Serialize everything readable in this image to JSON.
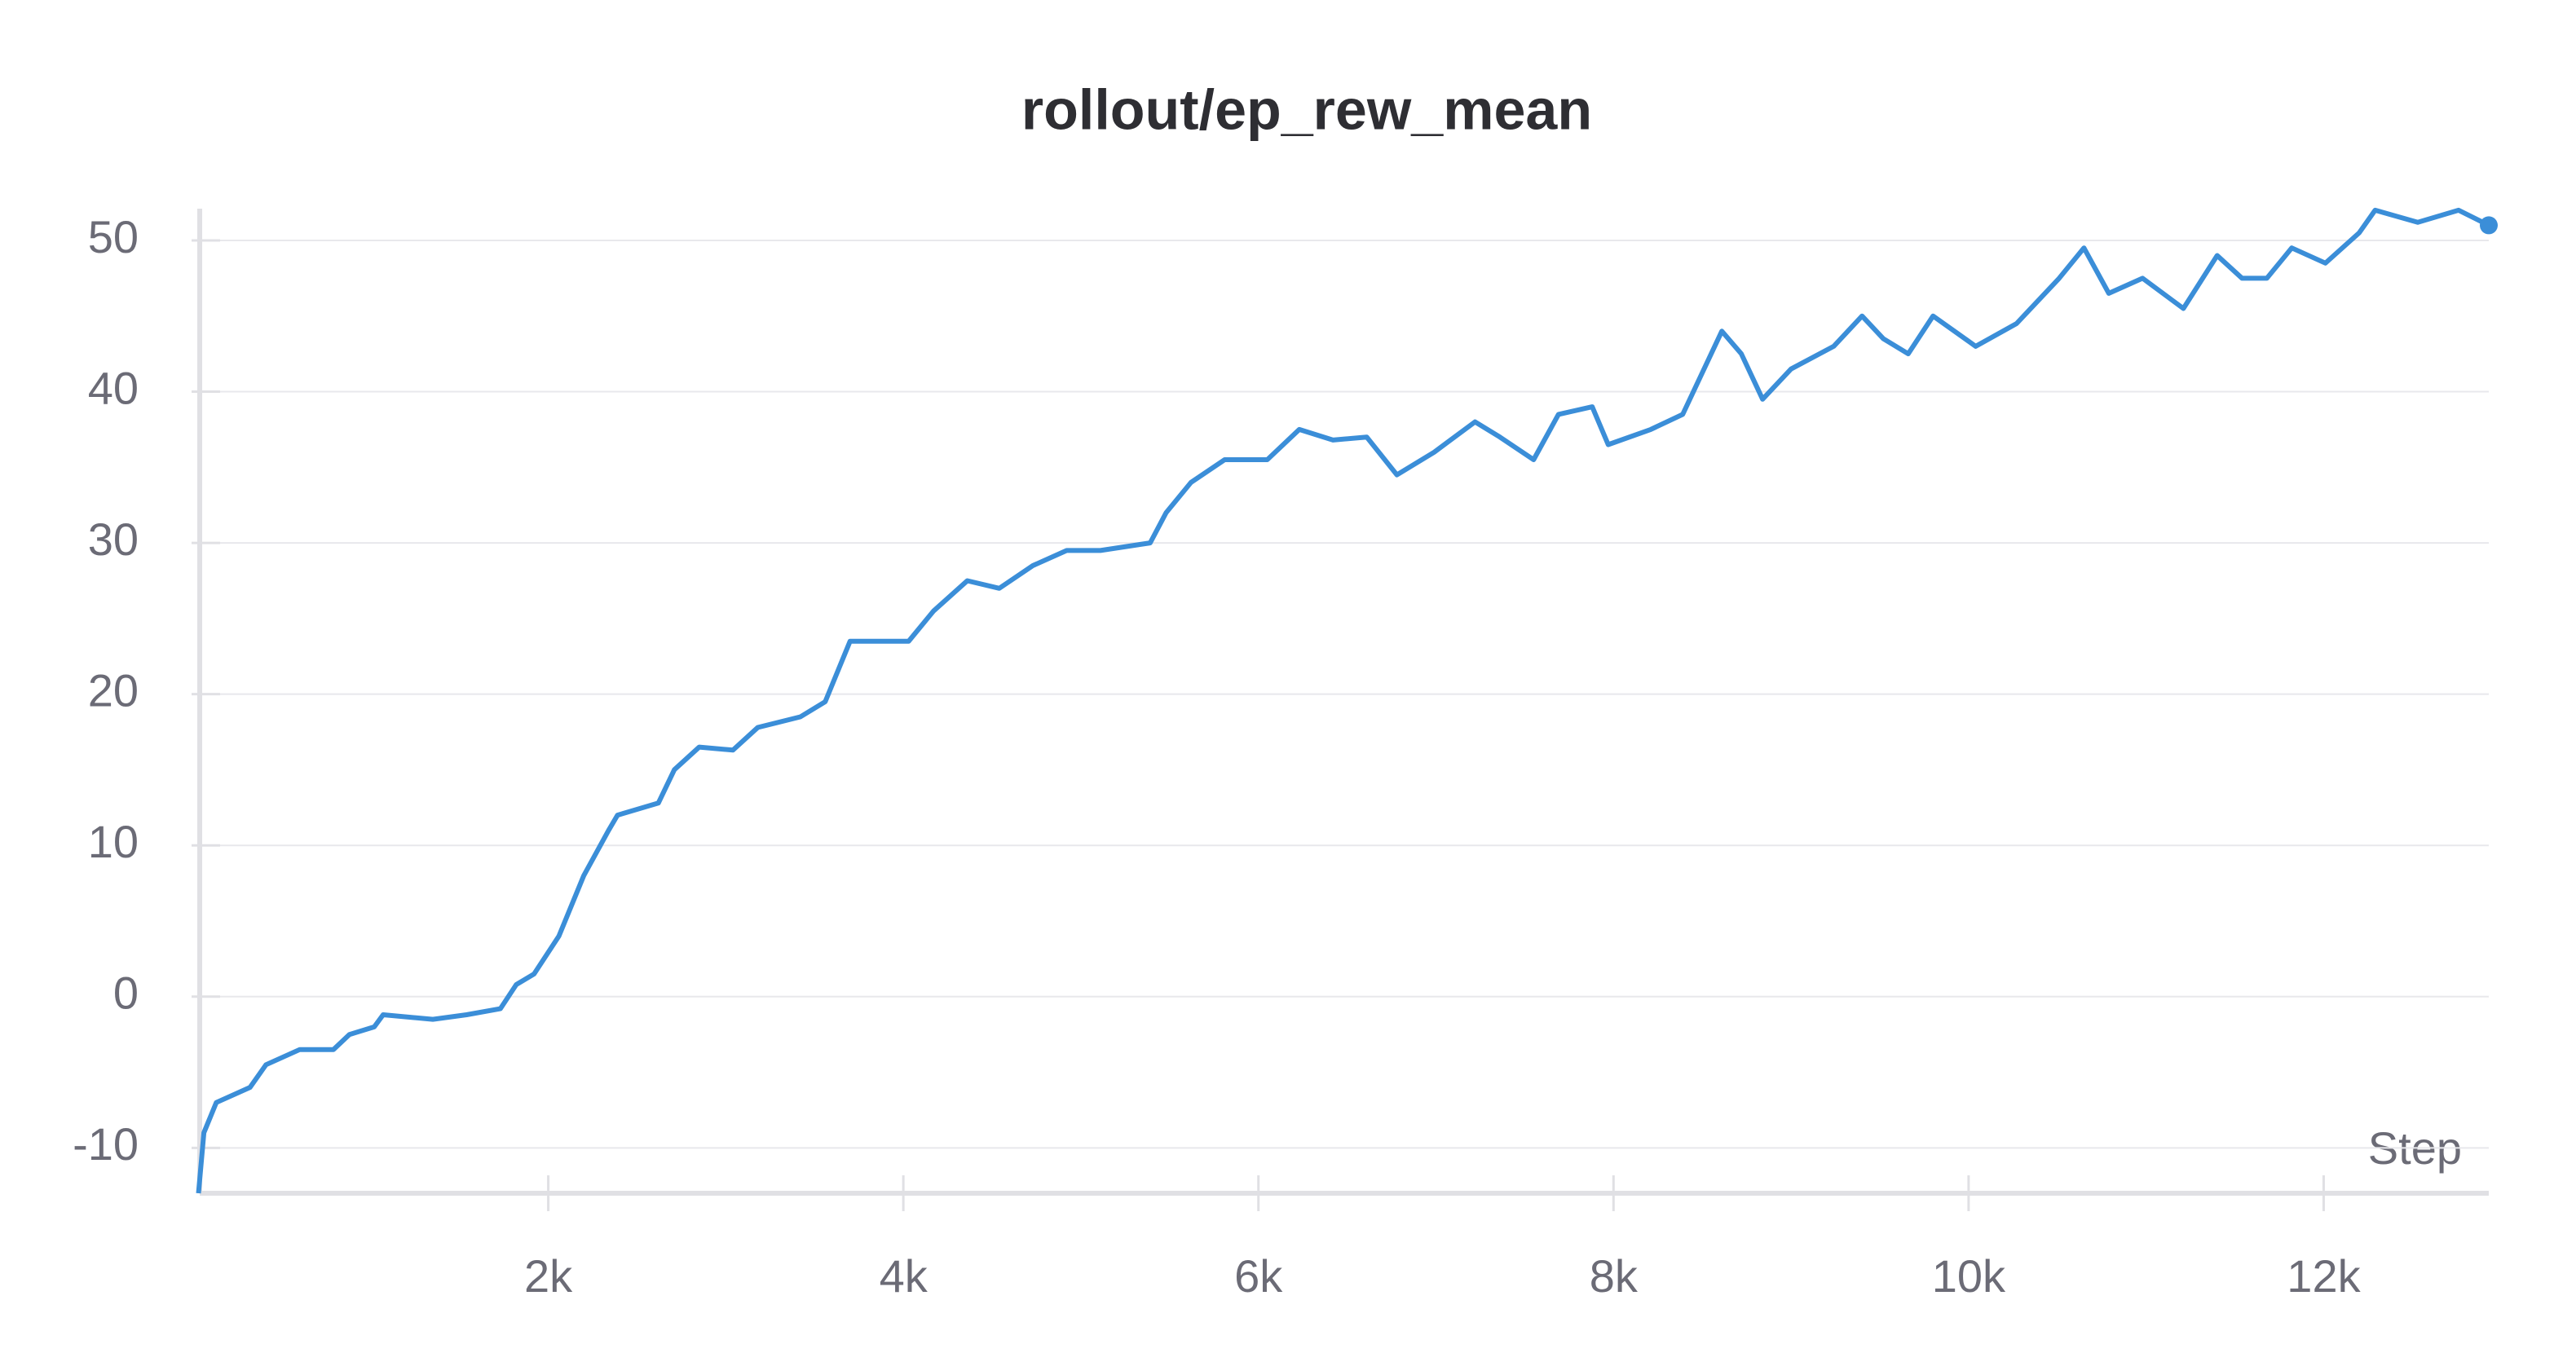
{
  "chart_data": {
    "type": "line",
    "title": "rollout/ep_rew_mean",
    "x_label": "Step",
    "x": [
      30,
      60,
      130,
      320,
      410,
      600,
      790,
      880,
      1020,
      1070,
      1350,
      1540,
      1730,
      1820,
      1920,
      2060,
      2200,
      2340,
      2390,
      2620,
      2710,
      2850,
      3040,
      3180,
      3420,
      3560,
      3700,
      4030,
      4170,
      4360,
      4540,
      4730,
      4920,
      5110,
      5390,
      5480,
      5620,
      5810,
      6050,
      6230,
      6420,
      6610,
      6780,
      6990,
      7220,
      7360,
      7550,
      7690,
      7880,
      7970,
      8210,
      8390,
      8490,
      8610,
      8720,
      8840,
      9000,
      9240,
      9400,
      9520,
      9660,
      9800,
      10040,
      10270,
      10510,
      10650,
      10790,
      10980,
      11210,
      11400,
      11540,
      11680,
      11820,
      12010,
      12200,
      12290,
      12530,
      12760,
      12930
    ],
    "values": [
      -13,
      -9,
      -7,
      -6,
      -4.5,
      -3.5,
      -3.5,
      -2.5,
      -2,
      -1.2,
      -1.5,
      -1.2,
      -0.8,
      0.8,
      1.5,
      4,
      8,
      11,
      12,
      12.8,
      15,
      16.5,
      16.3,
      17.8,
      18.5,
      19.5,
      23.5,
      23.5,
      25.5,
      27.5,
      27,
      28.5,
      29.5,
      29.5,
      30,
      32,
      34,
      35.5,
      35.5,
      37.5,
      36.8,
      37,
      34.5,
      36,
      38,
      37,
      35.5,
      38.5,
      39,
      36.5,
      37.5,
      38.5,
      41,
      44,
      42.5,
      39.5,
      41.5,
      43,
      45,
      43.5,
      42.5,
      45,
      43,
      44.5,
      47.5,
      49.5,
      46.5,
      47.5,
      45.5,
      49,
      47.5,
      47.5,
      49.5,
      48.5,
      50.5,
      52,
      51.2,
      52,
      51
    ],
    "color": "#3b8ed8",
    "xlim": [
      0,
      12930
    ],
    "xticks": [
      {
        "value": 2000,
        "label": "2k"
      },
      {
        "value": 4000,
        "label": "4k"
      },
      {
        "value": 6000,
        "label": "6k"
      },
      {
        "value": 8000,
        "label": "8k"
      },
      {
        "value": 10000,
        "label": "10k"
      },
      {
        "value": 12000,
        "label": "12k"
      }
    ],
    "ylim": [
      -13,
      52.1
    ],
    "yticks": [
      -10,
      0,
      10,
      20,
      30,
      40,
      50
    ],
    "grid": true
  }
}
